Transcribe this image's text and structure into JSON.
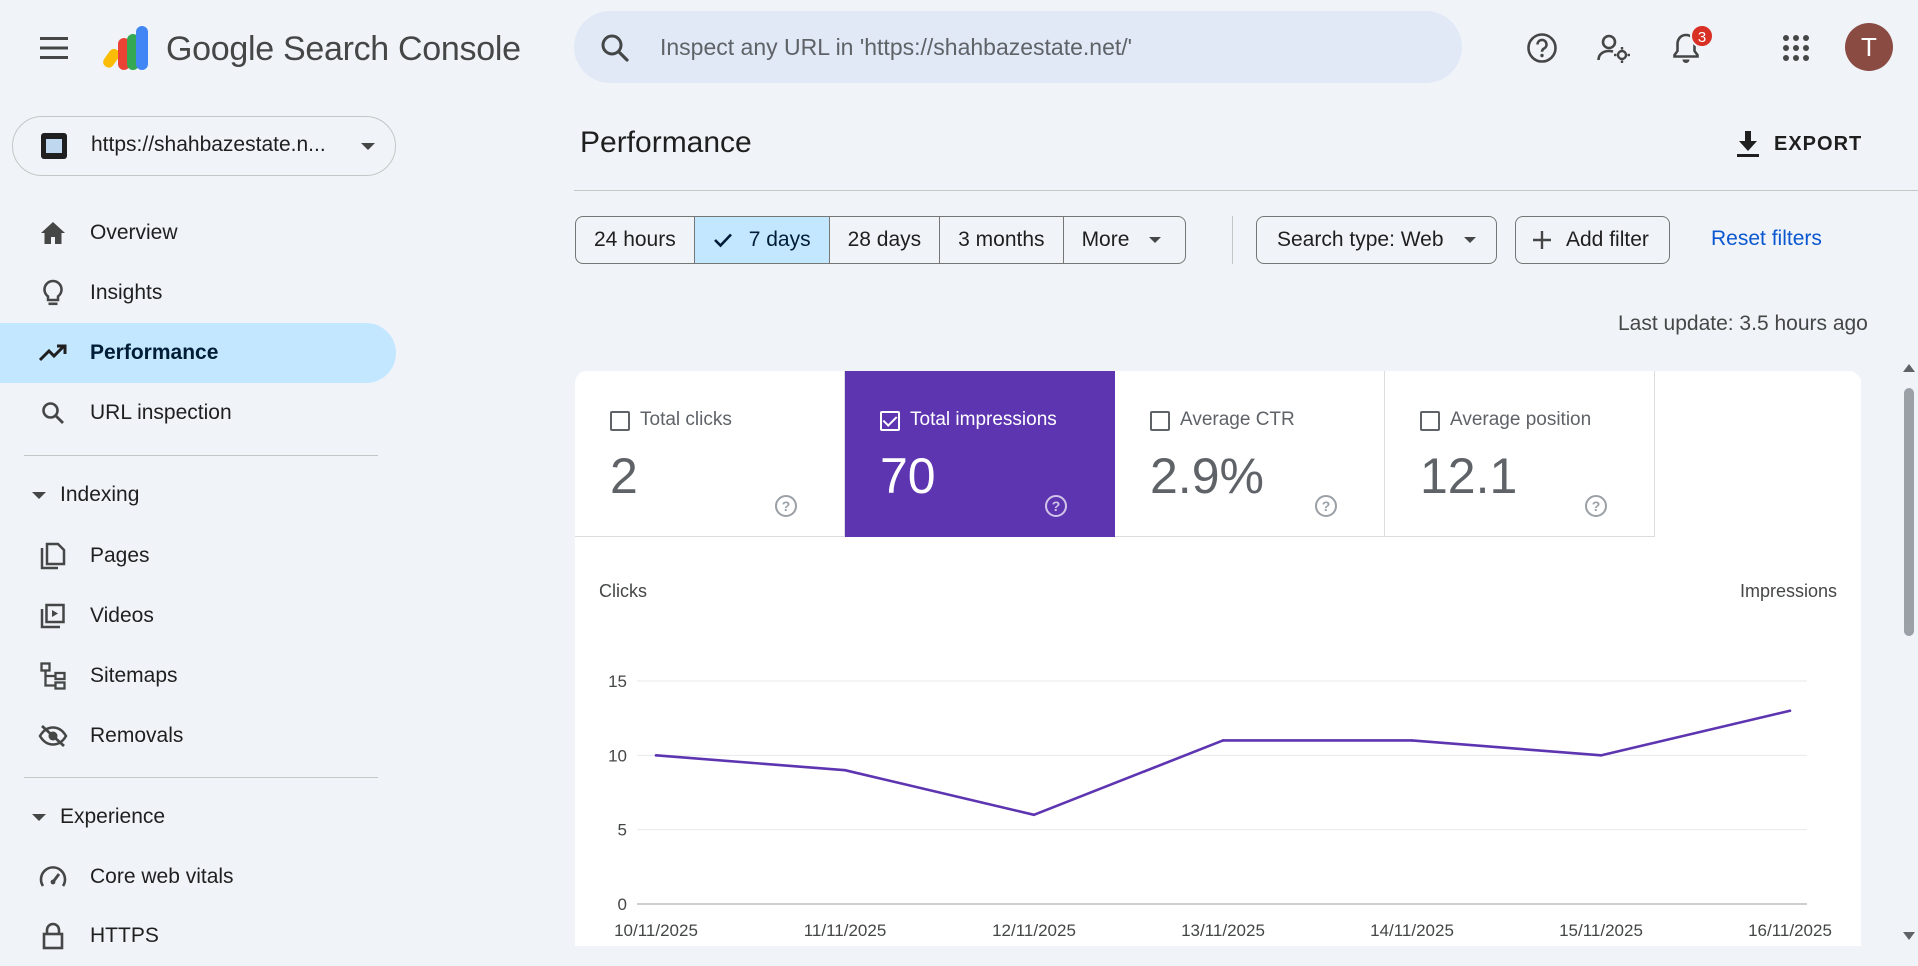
{
  "app": {
    "product_name": "Google Search Console",
    "logo_icon": "search-console-logo"
  },
  "search": {
    "placeholder": "Inspect any URL in 'https://shahbazestate.net/'"
  },
  "header": {
    "notification_count": "3",
    "avatar_initial": "T"
  },
  "property": {
    "label": "https://shahbazestate.n..."
  },
  "sidebar": {
    "items": [
      {
        "label": "Overview",
        "icon": "home-icon"
      },
      {
        "label": "Insights",
        "icon": "lightbulb-icon"
      },
      {
        "label": "Performance",
        "icon": "trending-up-icon",
        "active": true
      },
      {
        "label": "URL inspection",
        "icon": "search-icon"
      }
    ],
    "indexing": {
      "label": "Indexing",
      "items": [
        {
          "label": "Pages",
          "icon": "pages-icon"
        },
        {
          "label": "Videos",
          "icon": "video-icon"
        },
        {
          "label": "Sitemaps",
          "icon": "sitemap-icon"
        },
        {
          "label": "Removals",
          "icon": "eye-off-icon"
        }
      ]
    },
    "experience": {
      "label": "Experience",
      "items": [
        {
          "label": "Core web vitals",
          "icon": "speedometer-icon"
        },
        {
          "label": "HTTPS",
          "icon": "lock-icon"
        }
      ]
    }
  },
  "main": {
    "title": "Performance",
    "export_label": "EXPORT",
    "date_ranges": [
      {
        "label": "24 hours"
      },
      {
        "label": "7 days",
        "selected": true
      },
      {
        "label": "28 days"
      },
      {
        "label": "3 months"
      },
      {
        "label": "More"
      }
    ],
    "search_type": "Search type: Web",
    "add_filter": "Add filter",
    "reset_filters": "Reset filters",
    "last_update": "Last update: 3.5 hours ago",
    "metrics": [
      {
        "label": "Total clicks",
        "value": "2",
        "selected": false
      },
      {
        "label": "Total impressions",
        "value": "70",
        "selected": true
      },
      {
        "label": "Average CTR",
        "value": "2.9%",
        "selected": false
      },
      {
        "label": "Average position",
        "value": "12.1",
        "selected": false
      }
    ],
    "accent_color": "#5e35b1"
  },
  "chart_data": {
    "type": "line",
    "left_axis_label": "Clicks",
    "right_axis_label": "Impressions",
    "x": [
      "10/11/2025",
      "11/11/2025",
      "12/11/2025",
      "13/11/2025",
      "14/11/2025",
      "15/11/2025",
      "16/11/2025"
    ],
    "y_ticks": [
      0,
      5,
      10,
      15
    ],
    "ylim": [
      0,
      15
    ],
    "grid": true,
    "series": [
      {
        "color": "#5e35b1",
        "values": [
          10,
          9,
          6,
          11,
          11,
          10,
          13
        ]
      }
    ]
  }
}
